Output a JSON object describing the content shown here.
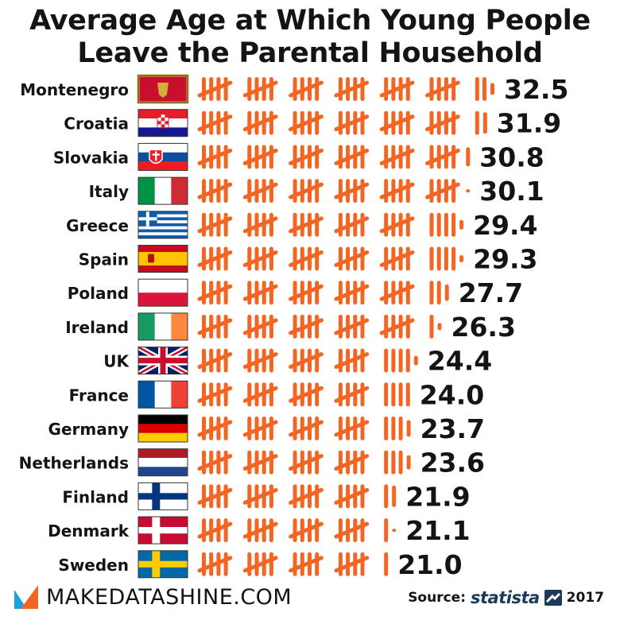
{
  "title_line1": "Average Age at Which Young People",
  "title_line2": "Leave the Parental Household",
  "footer": {
    "site": "MAKEDATASHINE.COM",
    "source_label": "Source:",
    "source_name": "statista",
    "year": "2017"
  },
  "colors": {
    "tally": "#f26522",
    "text": "#141414",
    "logo_orange": "#f26522",
    "logo_blue": "#1aa3d8",
    "statista_blue": "#1c3a5c"
  },
  "chart_data": {
    "type": "bar",
    "encoding": "tally marks, one mark per year of age",
    "categories": [
      "Montenegro",
      "Croatia",
      "Slovakia",
      "Italy",
      "Greece",
      "Spain",
      "Poland",
      "Ireland",
      "UK",
      "France",
      "Germany",
      "Netherlands",
      "Finland",
      "Denmark",
      "Sweden"
    ],
    "values": [
      32.5,
      31.9,
      30.8,
      30.1,
      29.4,
      29.3,
      27.7,
      26.3,
      24.4,
      24.0,
      23.7,
      23.6,
      21.9,
      21.1,
      21.0
    ],
    "value_labels": [
      "32.5",
      "31.9",
      "30.8",
      "30.1",
      "29.4",
      "29.3",
      "27.7",
      "26.3",
      "24.4",
      "24.0",
      "23.7",
      "23.6",
      "21.9",
      "21.1",
      "21.0"
    ],
    "flag_icons": [
      "montenegro-flag-icon",
      "croatia-flag-icon",
      "slovakia-flag-icon",
      "italy-flag-icon",
      "greece-flag-icon",
      "spain-flag-icon",
      "poland-flag-icon",
      "ireland-flag-icon",
      "uk-flag-icon",
      "france-flag-icon",
      "germany-flag-icon",
      "netherlands-flag-icon",
      "finland-flag-icon",
      "denmark-flag-icon",
      "sweden-flag-icon"
    ]
  }
}
